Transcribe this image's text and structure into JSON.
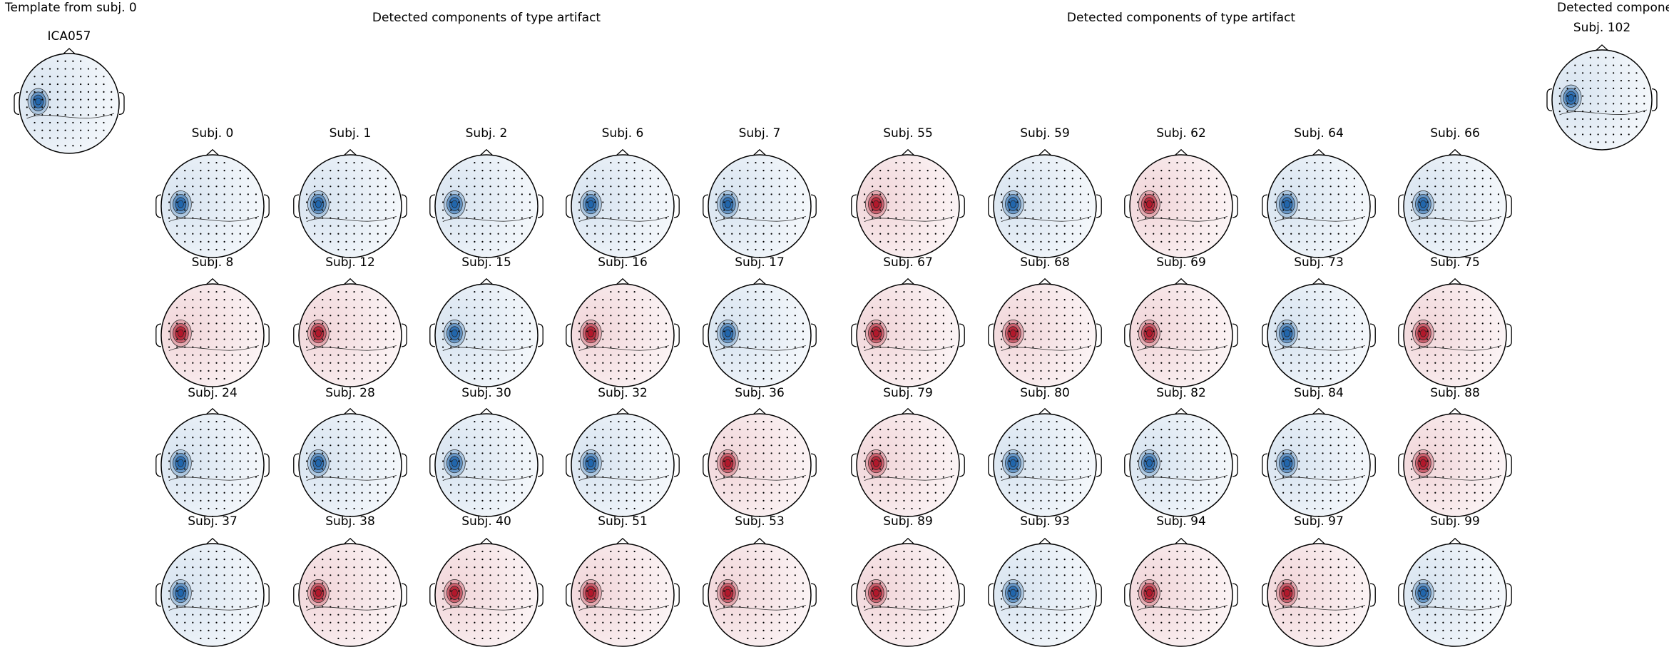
{
  "template": {
    "title": "Template from subj. 0",
    "component": "ICA057",
    "color": "#2166ac"
  },
  "panels": [
    {
      "title": "Detected components of type artifact",
      "subjects": [
        {
          "label": "Subj. 0",
          "color": "#2166ac"
        },
        {
          "label": "Subj. 1",
          "color": "#2166ac"
        },
        {
          "label": "Subj. 2",
          "color": "#2166ac"
        },
        {
          "label": "Subj. 6",
          "color": "#2166ac"
        },
        {
          "label": "Subj. 7",
          "color": "#2166ac"
        },
        {
          "label": "Subj. 8",
          "color": "#b2182b"
        },
        {
          "label": "Subj. 12",
          "color": "#b2182b"
        },
        {
          "label": "Subj. 15",
          "color": "#2166ac"
        },
        {
          "label": "Subj. 16",
          "color": "#b2182b"
        },
        {
          "label": "Subj. 17",
          "color": "#2166ac"
        },
        {
          "label": "Subj. 24",
          "color": "#2166ac"
        },
        {
          "label": "Subj. 28",
          "color": "#2166ac"
        },
        {
          "label": "Subj. 30",
          "color": "#2166ac"
        },
        {
          "label": "Subj. 32",
          "color": "#2166ac"
        },
        {
          "label": "Subj. 36",
          "color": "#b2182b"
        },
        {
          "label": "Subj. 37",
          "color": "#2166ac"
        },
        {
          "label": "Subj. 38",
          "color": "#b2182b"
        },
        {
          "label": "Subj. 40",
          "color": "#b2182b"
        },
        {
          "label": "Subj. 51",
          "color": "#b2182b"
        },
        {
          "label": "Subj. 53",
          "color": "#b2182b"
        }
      ]
    },
    {
      "title": "Detected components of type artifact",
      "subjects": [
        {
          "label": "Subj. 55",
          "color": "#b2182b"
        },
        {
          "label": "Subj. 59",
          "color": "#2166ac"
        },
        {
          "label": "Subj. 62",
          "color": "#b2182b"
        },
        {
          "label": "Subj. 64",
          "color": "#2166ac"
        },
        {
          "label": "Subj. 66",
          "color": "#2166ac"
        },
        {
          "label": "Subj. 67",
          "color": "#b2182b"
        },
        {
          "label": "Subj. 68",
          "color": "#b2182b"
        },
        {
          "label": "Subj. 69",
          "color": "#b2182b"
        },
        {
          "label": "Subj. 73",
          "color": "#2166ac"
        },
        {
          "label": "Subj. 75",
          "color": "#b2182b"
        },
        {
          "label": "Subj. 79",
          "color": "#b2182b"
        },
        {
          "label": "Subj. 80",
          "color": "#2166ac"
        },
        {
          "label": "Subj. 82",
          "color": "#2166ac"
        },
        {
          "label": "Subj. 84",
          "color": "#2166ac"
        },
        {
          "label": "Subj. 88",
          "color": "#b2182b"
        },
        {
          "label": "Subj. 89",
          "color": "#b2182b"
        },
        {
          "label": "Subj. 93",
          "color": "#2166ac"
        },
        {
          "label": "Subj. 94",
          "color": "#b2182b"
        },
        {
          "label": "Subj. 97",
          "color": "#b2182b"
        },
        {
          "label": "Subj. 99",
          "color": "#2166ac"
        }
      ]
    },
    {
      "title": "Detected components of type artifact",
      "subjects": [
        {
          "label": "Subj. 102",
          "color": "#2166ac"
        }
      ]
    }
  ]
}
